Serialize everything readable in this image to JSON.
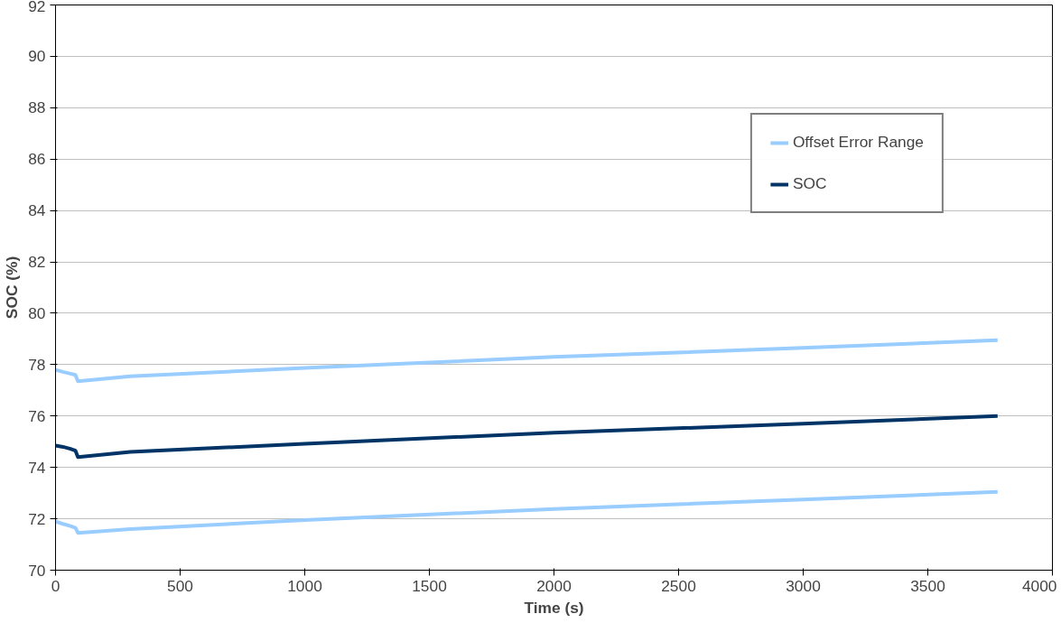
{
  "chart_data": {
    "type": "line",
    "xlabel": "Time (s)",
    "ylabel": "SOC (%)",
    "x": [
      0,
      30,
      60,
      80,
      90,
      300,
      1000,
      2000,
      3000,
      3780
    ],
    "series": [
      {
        "name": "Offset Error Range",
        "color": "#99ccff",
        "values": [
          77.8,
          77.72,
          77.65,
          77.6,
          77.35,
          77.55,
          77.87,
          78.3,
          78.65,
          78.95
        ]
      },
      {
        "name": "SOC",
        "color": "#003366",
        "values": [
          74.85,
          74.8,
          74.72,
          74.65,
          74.4,
          74.6,
          74.92,
          75.35,
          75.7,
          76.0
        ]
      },
      {
        "color": "#99ccff",
        "values": [
          71.9,
          71.8,
          71.72,
          71.65,
          71.45,
          71.6,
          71.95,
          72.38,
          72.75,
          73.05
        ]
      }
    ],
    "xlim": [
      0,
      4000
    ],
    "xticks": [
      0,
      500,
      1000,
      1500,
      2000,
      2500,
      3000,
      3500,
      4000
    ],
    "ylim": [
      70,
      92
    ],
    "yticks": [
      70,
      72,
      74,
      76,
      78,
      80,
      82,
      84,
      86,
      88,
      90,
      92
    ],
    "grid": "y",
    "legend": "top right",
    "marker": "none",
    "line_style": "solid"
  }
}
